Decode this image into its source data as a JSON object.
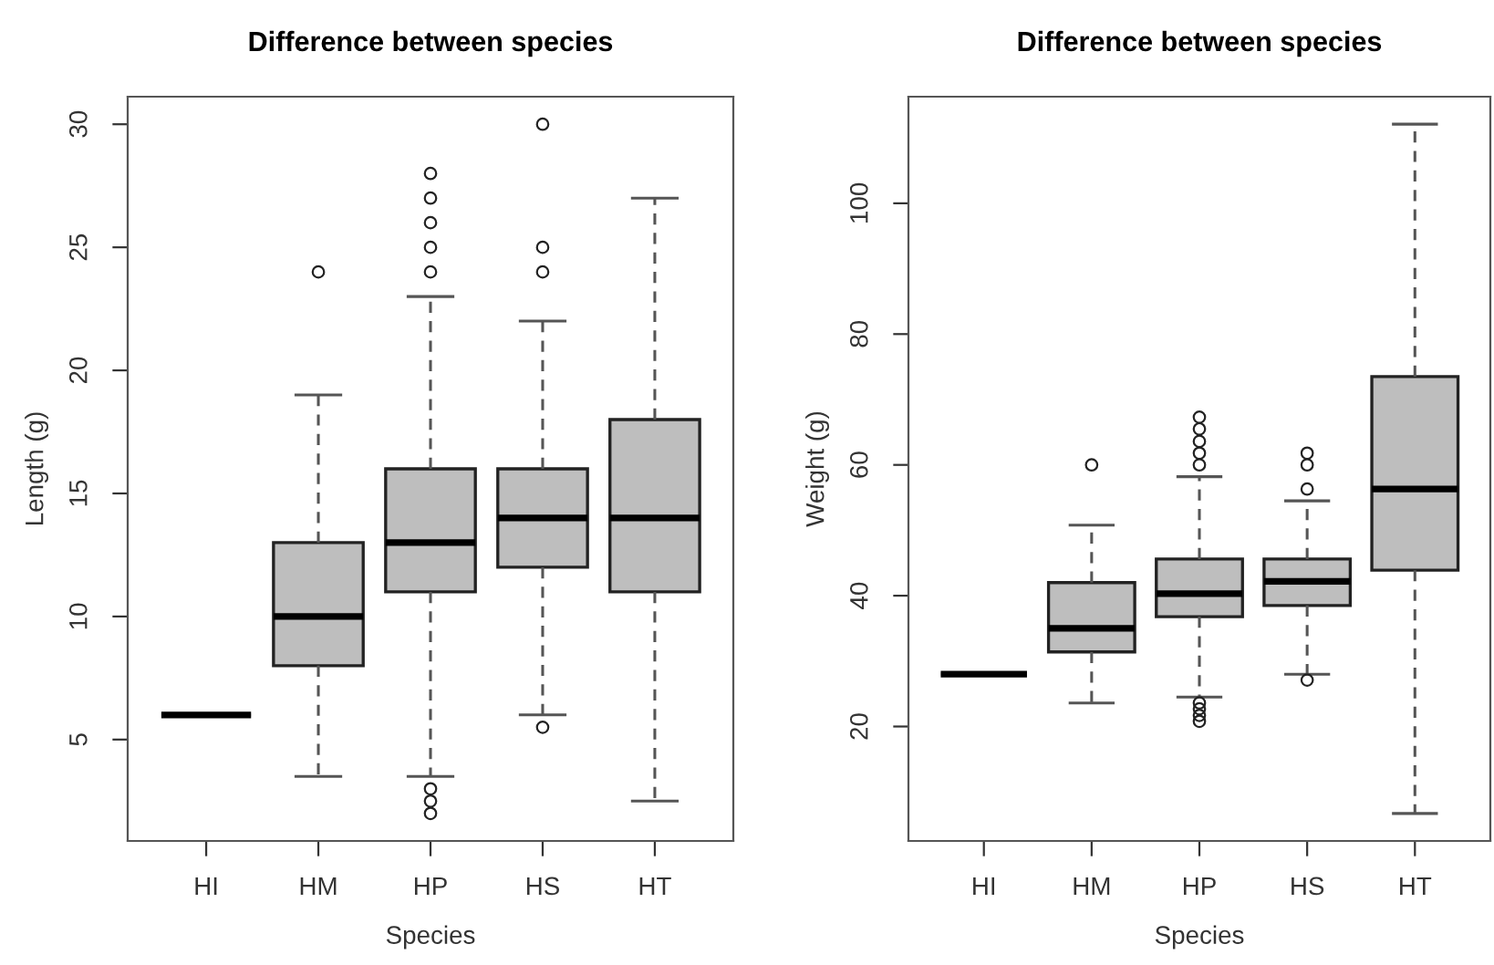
{
  "chart_data": [
    {
      "type": "box",
      "title": "Difference between species",
      "xlabel": "Species",
      "ylabel": "Length (g)",
      "categories": [
        "HI",
        "HM",
        "HP",
        "HS",
        "HT"
      ],
      "color": "#bebebe",
      "ylim": [
        0.88,
        31.12
      ],
      "yticks": [
        5,
        10,
        15,
        20,
        25,
        30
      ],
      "grid": false,
      "boxes": [
        {
          "low": 6,
          "q1": 6,
          "median": 6,
          "q3": 6,
          "high": 6
        },
        {
          "low": 3.5,
          "q1": 8,
          "median": 10,
          "q3": 13,
          "high": 19,
          "outliers": [
            24
          ]
        },
        {
          "low": 3.5,
          "q1": 11,
          "median": 13,
          "q3": 16,
          "high": 23,
          "outliers": [
            2,
            2.5,
            3,
            24,
            25,
            26,
            27,
            28
          ]
        },
        {
          "low": 6,
          "q1": 12,
          "median": 14,
          "q3": 16,
          "high": 22,
          "outliers": [
            5.5,
            24,
            25,
            30
          ]
        },
        {
          "low": 2.5,
          "q1": 11,
          "median": 14,
          "q3": 18,
          "high": 27
        }
      ]
    },
    {
      "type": "box",
      "title": "Difference between species",
      "xlabel": "Species",
      "ylabel": "Weight (g)",
      "categories": [
        "HI",
        "HM",
        "HP",
        "HS",
        "HT"
      ],
      "color": "#bebebe",
      "ylim": [
        2.5,
        116.3
      ],
      "yticks": [
        20,
        40,
        60,
        80,
        100
      ],
      "grid": false,
      "boxes": [
        {
          "low": 28,
          "q1": 28,
          "median": 28,
          "q3": 28,
          "high": 28
        },
        {
          "low": 23.6,
          "q1": 31.4,
          "median": 35,
          "q3": 42,
          "high": 50.8,
          "outliers": [
            60
          ]
        },
        {
          "low": 24.5,
          "q1": 36.8,
          "median": 40.3,
          "q3": 45.6,
          "high": 58.2,
          "outliers": [
            20.8,
            21.7,
            22.7,
            23.6,
            60,
            61.8,
            63.6,
            65.5,
            67.3
          ]
        },
        {
          "low": 28,
          "q1": 38.5,
          "median": 42.2,
          "q3": 45.6,
          "high": 54.5,
          "outliers": [
            27.1,
            56.3,
            60,
            61.8
          ]
        },
        {
          "low": 6.7,
          "q1": 43.9,
          "median": 56.3,
          "q3": 73.5,
          "high": 112.1
        }
      ]
    }
  ]
}
